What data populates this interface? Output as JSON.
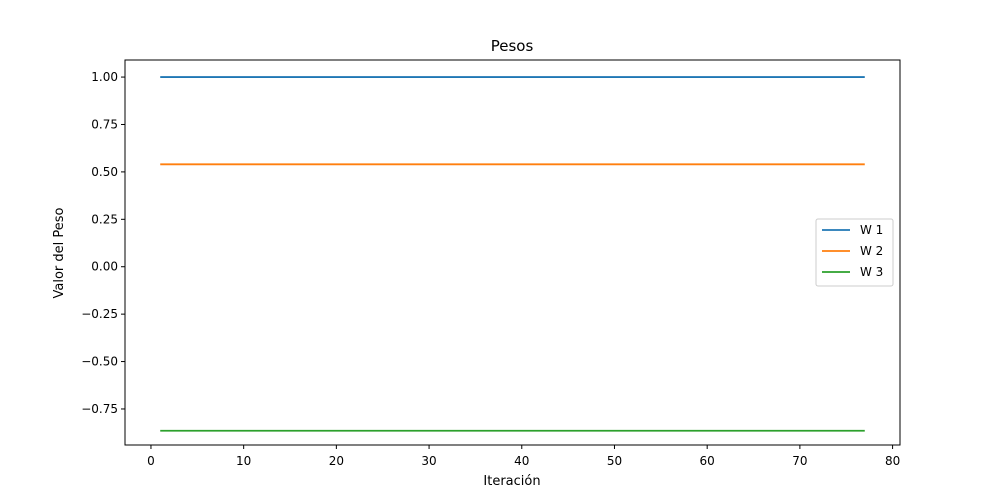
{
  "chart_data": {
    "type": "line",
    "title": "Pesos",
    "xlabel": "Iteración",
    "ylabel": "Valor del Peso",
    "xlim": [
      -2.8,
      80.8
    ],
    "ylim": [
      -0.94,
      1.09
    ],
    "x_ticks": [
      0,
      10,
      20,
      30,
      40,
      50,
      60,
      70,
      80
    ],
    "x_tick_labels": [
      "0",
      "10",
      "20",
      "30",
      "40",
      "50",
      "60",
      "70",
      "80"
    ],
    "y_ticks": [
      1.0,
      0.75,
      0.5,
      0.25,
      0.0,
      -0.25,
      -0.5,
      -0.75
    ],
    "y_tick_labels": [
      "1.00",
      "0.75",
      "0.50",
      "0.25",
      "0.00",
      "−0.25",
      "−0.50",
      "−0.75"
    ],
    "x": [
      1,
      77
    ],
    "series": [
      {
        "name": "W 1",
        "color": "#1f77b4",
        "values": [
          1.0,
          1.0
        ]
      },
      {
        "name": "W 2",
        "color": "#ff7f0e",
        "values": [
          0.54,
          0.54
        ]
      },
      {
        "name": "W 3",
        "color": "#2ca02c",
        "values": [
          -0.865,
          -0.865
        ]
      }
    ],
    "grid": false,
    "legend_position": "center-right"
  }
}
